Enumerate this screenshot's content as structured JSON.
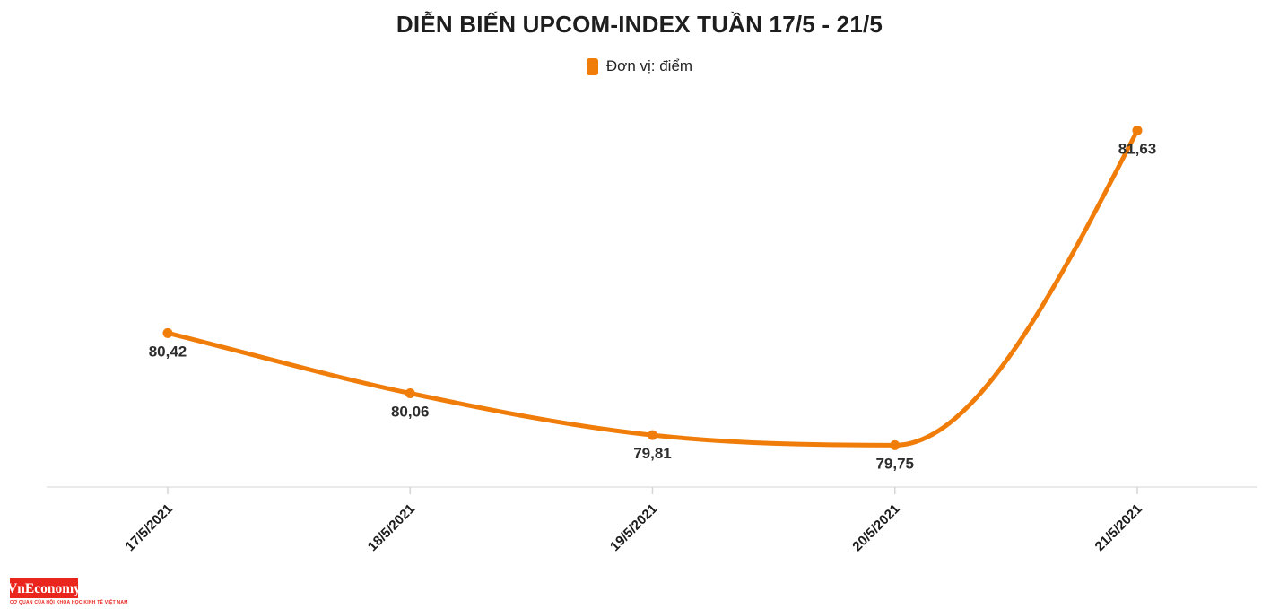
{
  "title": "DIỄN BIẾN UPCOM-INDEX TUẦN 17/5 - 21/5",
  "legend": {
    "label": "Đơn vị: điểm",
    "swatch_color": "#f07d0a"
  },
  "chart_data": {
    "type": "line",
    "title": "DIỄN BIẾN UPCOM-INDEX TUẦN 17/5 - 21/5",
    "categories": [
      "17/5/2021",
      "18/5/2021",
      "19/5/2021",
      "20/5/2021",
      "21/5/2021"
    ],
    "series": [
      {
        "name": "Đơn vị: điểm",
        "values": [
          80.42,
          80.06,
          79.81,
          79.75,
          81.63
        ],
        "data_labels": [
          "80,42",
          "80,06",
          "79,81",
          "79,75",
          "81,63"
        ]
      }
    ],
    "xlabel": "",
    "ylabel": "",
    "ylim": [
      79.5,
      81.9
    ],
    "y_axis_visible": false,
    "grid": false,
    "smooth": true,
    "legend_position": "top",
    "line_color": "#f07d0a",
    "marker_color": "#f07d0a",
    "axis_line_color": "#e4e4e4",
    "tick_color": "#d6d6d6",
    "data_label_color": "#2d2d2d",
    "x_label_color": "#1c1c1c",
    "x_label_rotation": -45
  },
  "logo": {
    "wordmark": "VnEconomy",
    "tagline": "CƠ QUAN CỦA HỘI KHOA HỌC KINH TẾ VIỆT NAM",
    "box_color": "#e9251d"
  }
}
